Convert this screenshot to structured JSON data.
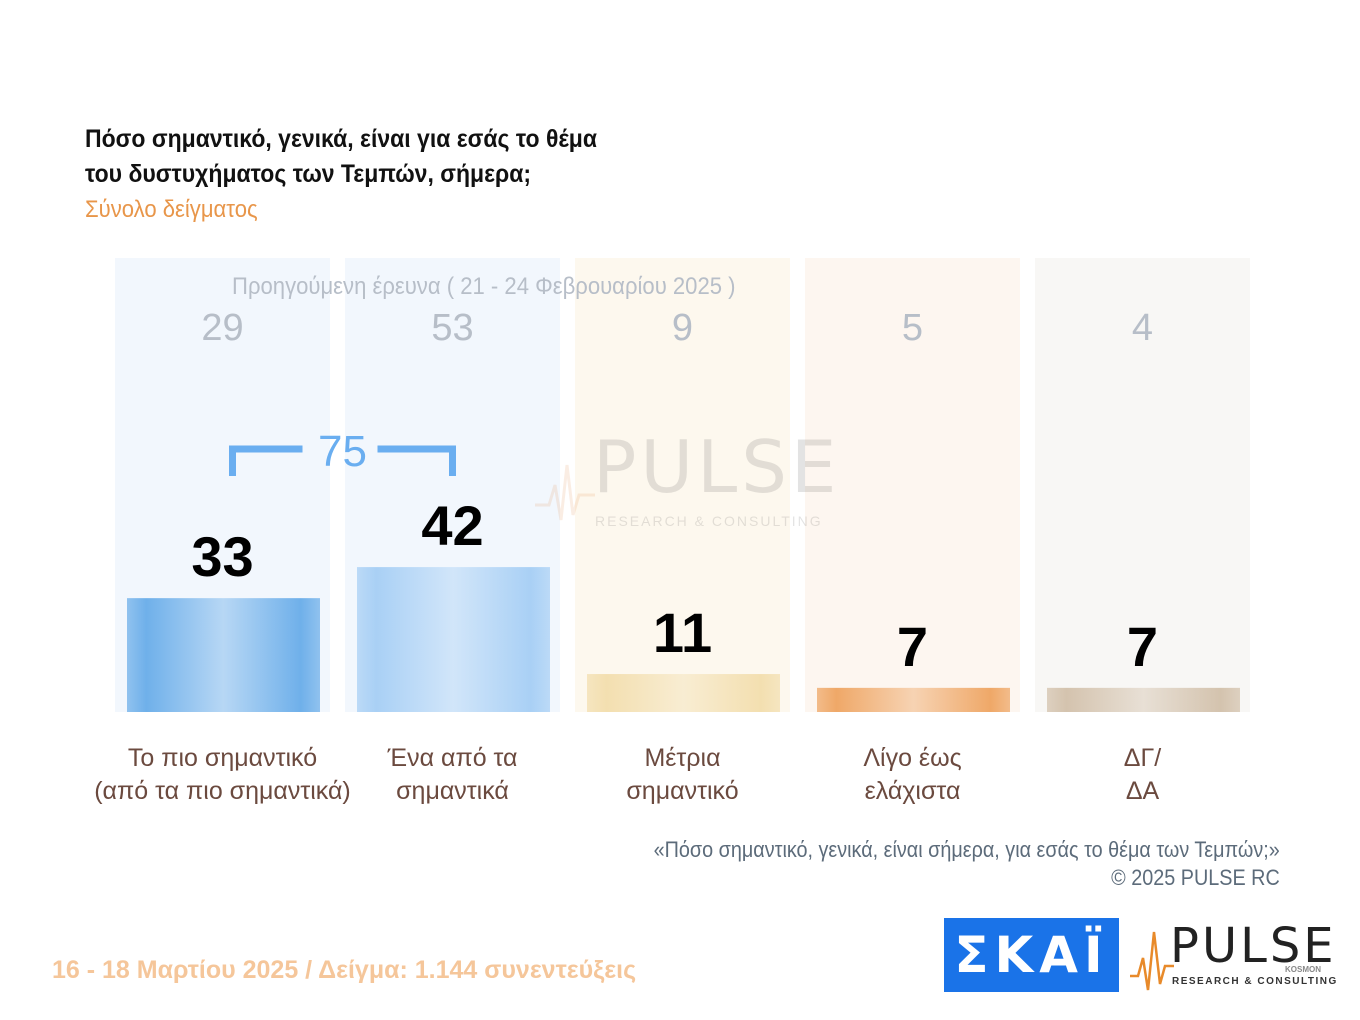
{
  "header": {
    "title_line1": "Πόσο σημαντικό, γενικά, είναι για εσάς το θέμα",
    "title_line2": "του δυστυχήματος των Τεμπών, σήμερα;",
    "subtitle": "Σύνολο δείγματος"
  },
  "chart_data": {
    "type": "bar",
    "title": "Πόσο σημαντικό, γενικά, είναι για εσάς το θέμα του δυστυχήματος των Τεμπών, σήμερα;",
    "categories": [
      [
        "Το πιο σημαντικό",
        "(από τα πιο σημαντικά)"
      ],
      [
        "Ένα από τα",
        "σημαντικά"
      ],
      [
        "Μέτρια",
        "σημαντικό"
      ],
      [
        "Λίγο έως",
        "ελάχιστα"
      ],
      [
        "ΔΓ/",
        "ΔΑ"
      ]
    ],
    "series": [
      {
        "name": "",
        "values": [
          33,
          42,
          11,
          7,
          7
        ]
      },
      {
        "name": "Προηγούμενη έρευνα ( 21 - 24 Φεβρουαρίου 2025 )",
        "values": [
          29,
          53,
          9,
          5,
          4
        ]
      }
    ],
    "combined": {
      "label": "75",
      "categories": [
        0,
        1
      ]
    },
    "ylim": [
      0,
      60
    ],
    "colors": {
      "bars": [
        "#6fb0ea",
        "#a9d0f5",
        "#f3dfb0",
        "#efa868",
        "#d4c3ae"
      ],
      "columns": [
        "#f2f7fd",
        "#f2f7fd",
        "#fdf8ee",
        "#fdf6f0",
        "#f8f7f5"
      ],
      "category_text": "#6b4a3f",
      "previous_text": "#b7bec8",
      "bracket": "#6aaef0"
    }
  },
  "previous_caption": "Προηγούμενη έρευνα ( 21 - 24 Φεβρουαρίου 2025 )",
  "source": {
    "quote": "«Πόσο σημαντικό, γενικά, είναι σήμερα, για εσάς το θέμα των Τεμπών;»",
    "copyright": "©  2025  PULSE RC"
  },
  "footer": {
    "text": "16 - 18 Μαρτίου 2025  /  Δείγμα:  1.144 συνεντεύξεις"
  },
  "logos": {
    "skai": "ΣΚΑΪ",
    "pulse": "PULSE",
    "pulse_sub": "RESEARCH & CONSULTING",
    "pulse_kosmon": "KOSMON",
    "icons": [
      "skai-logo-icon",
      "pulse-heartbeat-icon"
    ]
  }
}
